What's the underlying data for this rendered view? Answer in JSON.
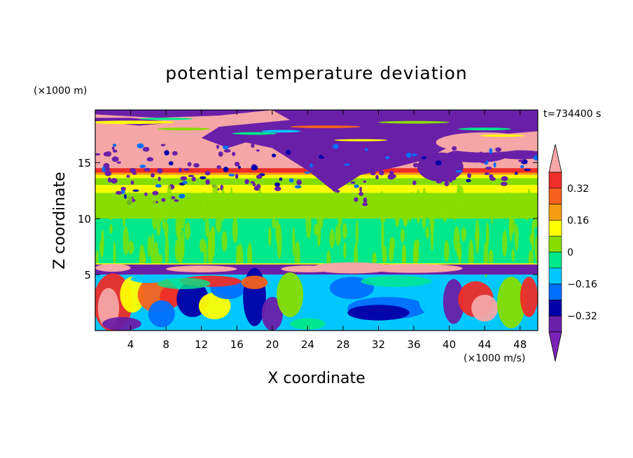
{
  "chart_data": {
    "type": "heatmap",
    "title": "potential temperature deviation",
    "xlabel": "X coordinate",
    "ylabel": "Z coordinate",
    "x_unit": "(×1000 m/s)",
    "y_unit": "(×1000 m)",
    "time_label": "t=734400 s",
    "xlim": [
      0,
      50
    ],
    "ylim": [
      0,
      19.7
    ],
    "x_ticks": [
      4,
      8,
      12,
      16,
      20,
      24,
      28,
      32,
      36,
      40,
      44,
      48
    ],
    "y_ticks": [
      5,
      10,
      15
    ],
    "colorbar": {
      "levels": [
        -0.4,
        -0.32,
        -0.24,
        -0.16,
        -0.08,
        0,
        0.08,
        0.16,
        0.24,
        0.32,
        0.4
      ],
      "tick_labels": [
        "0.32",
        "0.16",
        "0",
        "−0.16",
        "−0.32"
      ],
      "tick_values": [
        0.32,
        0.16,
        0,
        -0.16,
        -0.32
      ],
      "colors": [
        "#f5a6a6",
        "#ee2d28",
        "#f4621d",
        "#f59d11",
        "#ffff00",
        "#86de00",
        "#00e88a",
        "#00c8ff",
        "#006fff",
        "#0000a8",
        "#6a1fa8",
        "#7a22b5"
      ],
      "extend": "both"
    },
    "layers": [
      {
        "z_range": [
          18.5,
          19.7
        ],
        "pattern": "pink and purple patches with green/yellow streaks"
      },
      {
        "z_range": [
          15.5,
          18.5
        ],
        "pattern": "pink on left, purple in middle, pink on right"
      },
      {
        "z_range": [
          14.0,
          15.5
        ],
        "pattern": "red/orange band with scattered purple"
      },
      {
        "z_range": [
          12.5,
          14.0
        ],
        "pattern": "yellow"
      },
      {
        "z_range": [
          6.2,
          12.5
        ],
        "pattern": "green with light-green streaks"
      },
      {
        "z_range": [
          5.0,
          6.2
        ],
        "pattern": "pink/purple thin band"
      },
      {
        "z_range": [
          0,
          5.0
        ],
        "pattern": "cyan/blue with red-yellow eddies"
      }
    ]
  }
}
